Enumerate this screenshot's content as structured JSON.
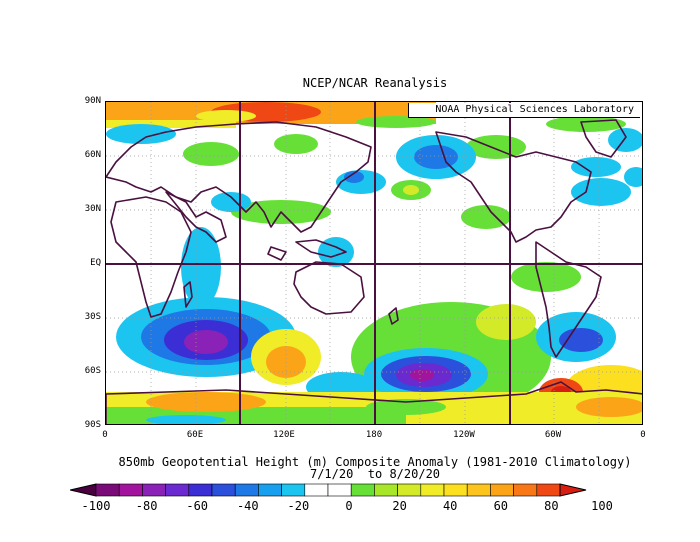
{
  "title": "NCEP/NCAR Reanalysis",
  "credit": "NOAA Physical Sciences Laboratory",
  "lat_labels": [
    "90N",
    "60N",
    "30N",
    "EQ",
    "30S",
    "60S",
    "90S"
  ],
  "lon_labels": [
    "0",
    "60E",
    "120E",
    "180",
    "120W",
    "60W",
    "0"
  ],
  "caption_line1": "850mb Geopotential Height (m) Composite Anomaly (1981-2010 Climatology)",
  "caption_line2": "7/1/20  to 8/20/20",
  "colorbar": {
    "labels": [
      "-100",
      "-80",
      "-60",
      "-40",
      "-20",
      "0",
      "20",
      "40",
      "60",
      "80",
      "100"
    ],
    "colors": [
      "#4a0040",
      "#7a0a78",
      "#a3149e",
      "#8a22b8",
      "#6a2ad0",
      "#3a2ed4",
      "#2a50dc",
      "#1e78e6",
      "#18a0ee",
      "#1cc4f0",
      "#ffffff",
      "#ffffff",
      "#66e036",
      "#a8e62a",
      "#d2ea28",
      "#f0ec28",
      "#fce020",
      "#fcc41c",
      "#fca418",
      "#f87818",
      "#f04814",
      "#d81e10"
    ]
  },
  "colors": {
    "neg_low": "#1cc4f0",
    "neg_mid": "#2a50dc",
    "neg_strong": "#6a2ad0",
    "neg_extreme": "#8a14a8",
    "pos_low": "#66e036",
    "pos_mid": "#f0ec28",
    "pos_high": "#fca418",
    "pos_extreme": "#f04814",
    "continents": "#4a1040",
    "grid": "#aaaaaa"
  }
}
